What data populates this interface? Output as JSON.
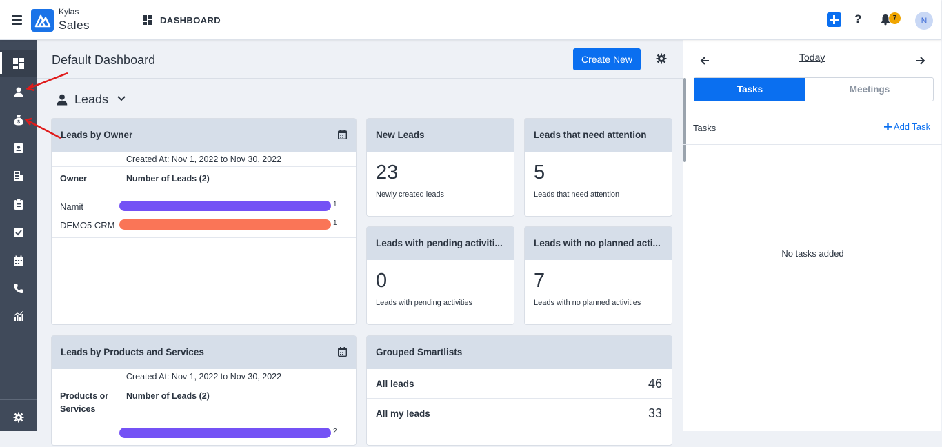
{
  "topbar": {
    "brand_top": "Kylas",
    "brand_main": "Sales",
    "section_title": "DASHBOARD",
    "help_label": "?",
    "notification_count": "7",
    "avatar_initial": "N"
  },
  "sidebar": {
    "items": [
      "dashboard",
      "leads",
      "deals",
      "contacts",
      "companies",
      "tasks-clipboard",
      "tasks",
      "meetings",
      "calls",
      "reports"
    ],
    "active": "dashboard",
    "footer": "settings"
  },
  "main": {
    "title": "Default Dashboard",
    "create_button": "Create New",
    "entity_selector": "Leads"
  },
  "leads_by_owner": {
    "title": "Leads by Owner",
    "created_at": "Created At: Nov 1, 2022 to Nov 30, 2022",
    "col_owner": "Owner",
    "col_count": "Number of Leads (2)",
    "rows": [
      {
        "name": "Namit",
        "value": "1",
        "color": "#7452f5"
      },
      {
        "name": "DEMO5 CRM",
        "value": "1",
        "color": "#fa7557"
      }
    ]
  },
  "kpis": [
    {
      "title": "New Leads",
      "value": "23",
      "subtitle": "Newly created leads"
    },
    {
      "title": "Leads that need attention",
      "value": "5",
      "subtitle": "Leads that need attention"
    },
    {
      "title": "Leads with pending activiti...",
      "value": "0",
      "subtitle": "Leads with pending activities"
    },
    {
      "title": "Leads with no planned acti...",
      "value": "7",
      "subtitle": "Leads with no planned activities"
    }
  ],
  "leads_by_products": {
    "title": "Leads by Products and Services",
    "created_at": "Created At: Nov 1, 2022 to Nov 30, 2022",
    "col_product_1": "Products or",
    "col_product_2": "Services",
    "col_count": "Number of Leads (2)",
    "partial_value": "2"
  },
  "grouped_smartlists": {
    "title": "Grouped Smartlists",
    "rows": [
      {
        "label": "All leads",
        "count": "46"
      },
      {
        "label": "All my leads",
        "count": "33"
      }
    ]
  },
  "right_panel": {
    "today": "Today",
    "tab_tasks": "Tasks",
    "tab_meetings": "Meetings",
    "tasks_label": "Tasks",
    "add_task": "Add Task",
    "empty": "No tasks added"
  },
  "colors": {
    "primary": "#0a6ff0",
    "sidebar": "#404a5a",
    "card_header": "#d6dee9",
    "badge": "#f0a500"
  }
}
